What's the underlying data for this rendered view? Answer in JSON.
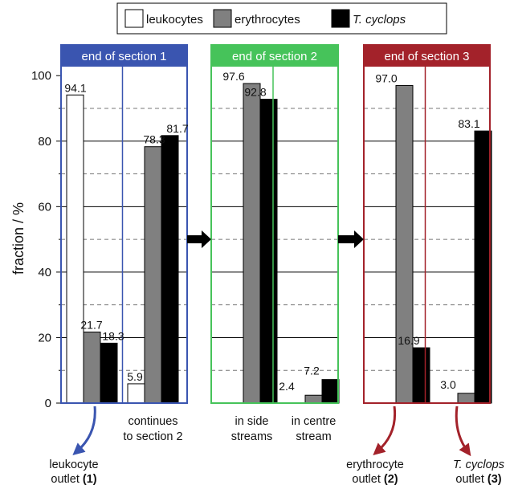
{
  "chart_data": {
    "type": "bar",
    "ylabel": "fraction / %",
    "ylim": [
      0,
      100
    ],
    "yticks": [
      0,
      20,
      40,
      60,
      80,
      100
    ],
    "grid": "solid at major ticks, dashed at 10, 30, 50, 70, 90",
    "legend": {
      "placement": "top",
      "entries": [
        {
          "label": "leukocytes",
          "style": "normal",
          "color": "#ffffff"
        },
        {
          "label": "erythrocytes",
          "style": "normal",
          "color": "#808080"
        },
        {
          "label": "T. cyclops",
          "style": "italic",
          "color": "#000000"
        }
      ]
    },
    "panels": [
      {
        "title": "end of section 1",
        "color": "#3a55b0",
        "groups": [
          {
            "label": [
              "",
              ""
            ],
            "values": [
              94.1,
              21.7,
              18.3
            ],
            "outlet": {
              "lines": [
                "leukocyte"
              ],
              "tail_normal": "outlet ",
              "tail_bold": "(1)"
            }
          },
          {
            "label": [
              "continues",
              "to section 2"
            ],
            "values": [
              5.9,
              78.3,
              81.7
            ]
          }
        ]
      },
      {
        "title": "end of section 2",
        "color": "#46c35a",
        "groups": [
          {
            "label": [
              "in side",
              "streams"
            ],
            "values": [
              null,
              97.6,
              92.8
            ]
          },
          {
            "label": [
              "in centre",
              "stream"
            ],
            "values": [
              null,
              2.4,
              7.2
            ]
          }
        ]
      },
      {
        "title": "end of section 3",
        "color": "#a3222a",
        "groups": [
          {
            "label": [
              "",
              ""
            ],
            "values": [
              null,
              97.0,
              16.9
            ],
            "outlet": {
              "lines": [
                "erythrocyte"
              ],
              "tail_normal": "outlet ",
              "tail_bold": "(2)"
            }
          },
          {
            "label": [
              "",
              ""
            ],
            "values": [
              null,
              3.0,
              83.1
            ],
            "outlet": {
              "lines_italic": [
                "T. cyclops"
              ],
              "tail_normal": "outlet ",
              "tail_bold": "(3)"
            }
          }
        ]
      }
    ],
    "value_labels": [
      [
        "94.1",
        "21.7",
        "18.3",
        "5.9",
        "78.3",
        "81.7"
      ],
      [
        "97.6",
        "92.8",
        "2.4",
        "7.2"
      ],
      [
        "97.0",
        "16.9",
        "3.0",
        "83.1"
      ]
    ]
  }
}
